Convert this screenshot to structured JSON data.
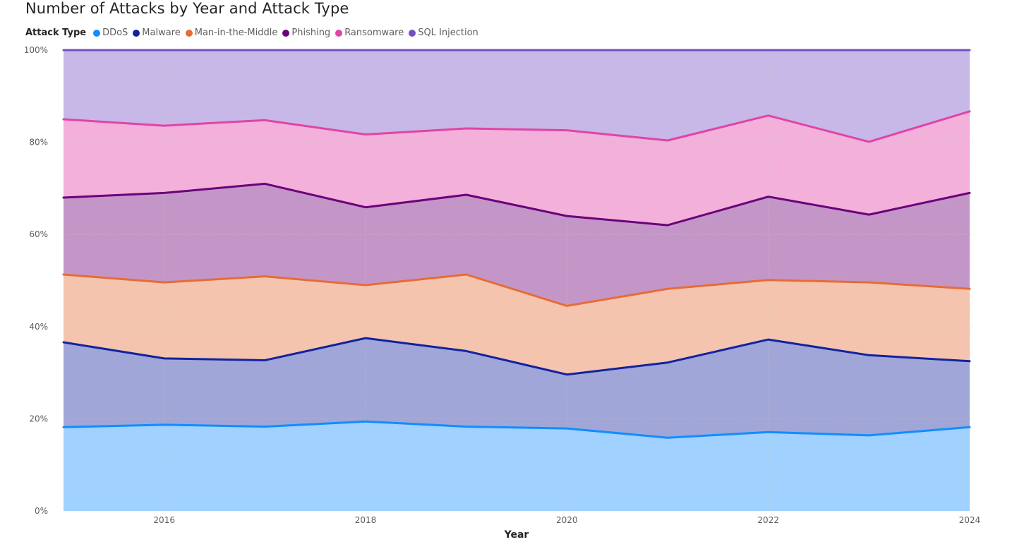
{
  "chart_data": {
    "type": "area",
    "stacked": "percent",
    "title": "Number of Attacks by Year and Attack Type",
    "xlabel": "Year",
    "ylabel": "",
    "legend": {
      "title": "Attack Type",
      "position": "top-left"
    },
    "x": [
      2015,
      2016,
      2017,
      2018,
      2019,
      2020,
      2021,
      2022,
      2023,
      2024
    ],
    "x_ticks": [
      2016,
      2018,
      2020,
      2022,
      2024
    ],
    "x_range": [
      2015,
      2024
    ],
    "y_ticks": [
      "0%",
      "20%",
      "40%",
      "60%",
      "80%",
      "100%"
    ],
    "y_tick_values": [
      0,
      20,
      40,
      60,
      80,
      100
    ],
    "ylim": [
      0,
      100
    ],
    "grid": true,
    "series": [
      {
        "name": "DDoS",
        "color": "#118DFF",
        "fill": "#A0D1FF",
        "values": [
          18.2,
          18.7,
          18.3,
          19.4,
          18.3,
          17.9,
          15.9,
          17.1,
          16.4,
          18.2
        ]
      },
      {
        "name": "Malware",
        "color": "#12239E",
        "fill": "#A0A6D8",
        "values": [
          18.4,
          14.4,
          14.4,
          18.1,
          16.4,
          11.7,
          16.3,
          20.1,
          17.4,
          14.3
        ]
      },
      {
        "name": "Man-in-the-Middle",
        "color": "#E66C37",
        "fill": "#F4C4AF",
        "values": [
          14.7,
          16.5,
          18.2,
          11.5,
          16.6,
          14.9,
          16.0,
          12.9,
          15.8,
          15.7
        ]
      },
      {
        "name": "Phishing",
        "color": "#6B007B",
        "fill": "#C496C8",
        "values": [
          16.7,
          19.4,
          20.1,
          16.9,
          17.3,
          19.5,
          13.8,
          18.1,
          14.7,
          20.8
        ]
      },
      {
        "name": "Ransomware",
        "color": "#E044A7",
        "fill": "#F2B0DA",
        "values": [
          17.0,
          14.6,
          13.8,
          15.8,
          14.4,
          18.6,
          18.4,
          17.6,
          15.8,
          17.7
        ]
      },
      {
        "name": "SQL Injection",
        "color": "#744EC2",
        "fill": "#C8B8E7",
        "values": [
          15.0,
          16.4,
          15.2,
          18.3,
          17.0,
          17.4,
          19.6,
          14.2,
          19.9,
          13.3
        ]
      }
    ]
  }
}
